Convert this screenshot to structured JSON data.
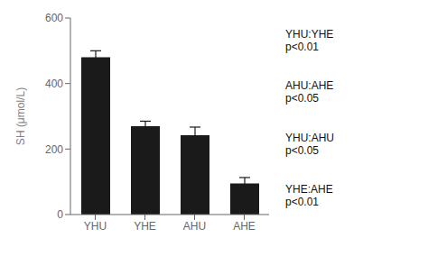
{
  "chart_data": {
    "type": "bar",
    "categories": [
      "YHU",
      "YHE",
      "AHU",
      "AHE"
    ],
    "values": [
      480,
      270,
      242,
      95
    ],
    "errors": [
      20,
      15,
      25,
      18
    ],
    "color": "#1a1a1a",
    "ylabel": "SH (μmol/L)",
    "ylim": [
      0,
      600
    ],
    "yticks": [
      0,
      200,
      400,
      600
    ],
    "grid": false,
    "annotations": [
      "YHU:YHE\np<0.01",
      "AHU:AHE\np<0.05",
      "YHU:AHU\np<0.05",
      "YHE:AHE\np<0.01"
    ]
  }
}
